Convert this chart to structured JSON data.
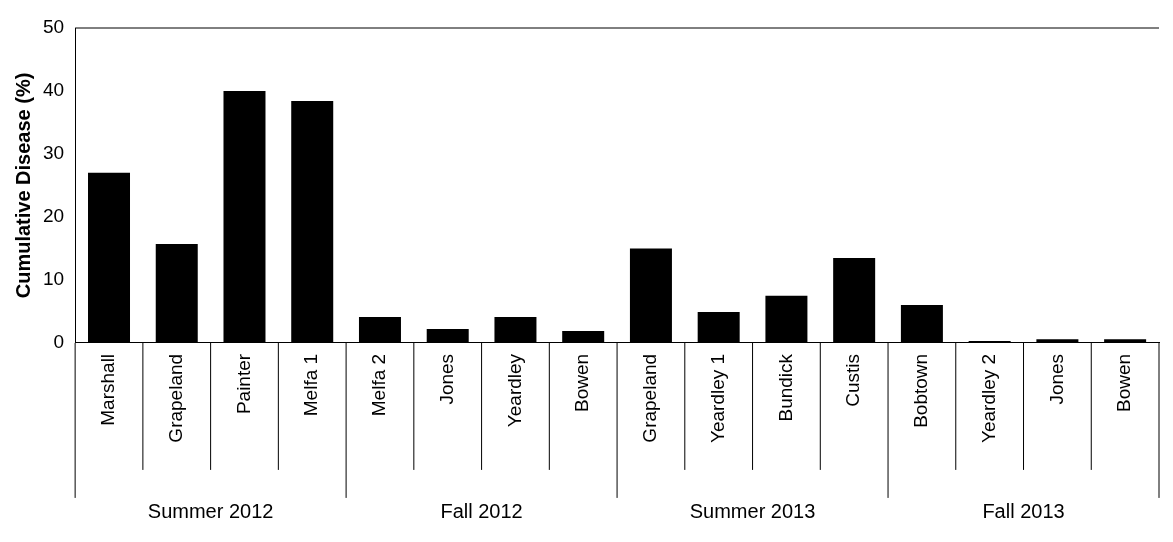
{
  "chart_data": {
    "type": "bar",
    "ylabel": "Cumulative Disease (%)",
    "categories": [
      "Marshall",
      "Grapeland",
      "Painter",
      "Melfa 1",
      "Melfa 2",
      "Jones",
      "Yeardley",
      "Bowen",
      "Grapeland",
      "Yeardley 1",
      "Bundick",
      "Custis",
      "Bobtown",
      "Yeardley 2",
      "Jones",
      "Bowen"
    ],
    "values": [
      27,
      15.7,
      40,
      38.4,
      4.1,
      2.2,
      4.1,
      1.9,
      15,
      4.9,
      7.5,
      13.5,
      6,
      0.3,
      0.6,
      0.6
    ],
    "color": "#000000",
    "ylim": [
      0,
      50
    ],
    "yticks": [
      0,
      10,
      20,
      30,
      40,
      50
    ],
    "grid": false,
    "legend": false,
    "annotations": [
      "Summer 2012",
      "Fall 2012",
      "Summer 2013",
      "Fall 2013"
    ]
  }
}
